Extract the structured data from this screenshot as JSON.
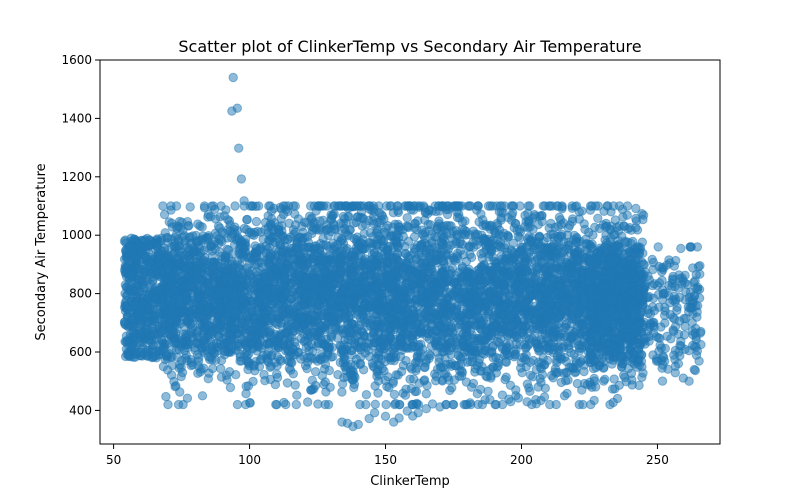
{
  "chart_data": {
    "type": "scatter",
    "title": "Scatter plot of ClinkerTemp vs Secondary Air Temperature",
    "xlabel": "ClinkerTemp",
    "ylabel": "Secondary Air Temperature",
    "xlim": [
      45,
      273
    ],
    "ylim": [
      285,
      1600
    ],
    "xticks": [
      50,
      100,
      150,
      200,
      250
    ],
    "yticks": [
      400,
      600,
      800,
      1000,
      1200,
      1400,
      1600
    ],
    "grid": false,
    "legend": "none",
    "point_color": "#1f77b4",
    "point_alpha": 0.5,
    "series": [
      {
        "core_cloud": {
          "x_min": 68,
          "x_max": 245,
          "y_mean": 790,
          "y_spread": 170,
          "count": 6000
        },
        "left_edge_cluster": {
          "x_min": 54,
          "x_max": 68,
          "y_min": 580,
          "y_max": 990,
          "count": 500
        },
        "right_tail": {
          "x_min": 225,
          "x_max": 266,
          "y_min": 430,
          "y_max": 960,
          "count": 500
        },
        "outliers": [
          [
            94,
            1540
          ],
          [
            95.5,
            1435
          ],
          [
            93.5,
            1425
          ],
          [
            96,
            1298
          ],
          [
            97,
            1193
          ],
          [
            98,
            1118
          ],
          [
            99,
            1053
          ],
          [
            92,
            1053
          ],
          [
            134,
            360
          ],
          [
            136,
            356
          ],
          [
            138,
            345
          ],
          [
            140,
            352
          ],
          [
            144,
            372
          ],
          [
            146,
            392
          ],
          [
            150,
            380
          ],
          [
            155,
            374
          ],
          [
            160,
            381
          ],
          [
            162,
            392
          ],
          [
            153,
            360
          ],
          [
            158,
            398
          ],
          [
            165,
            406
          ],
          [
            170,
            412
          ]
        ]
      }
    ]
  }
}
